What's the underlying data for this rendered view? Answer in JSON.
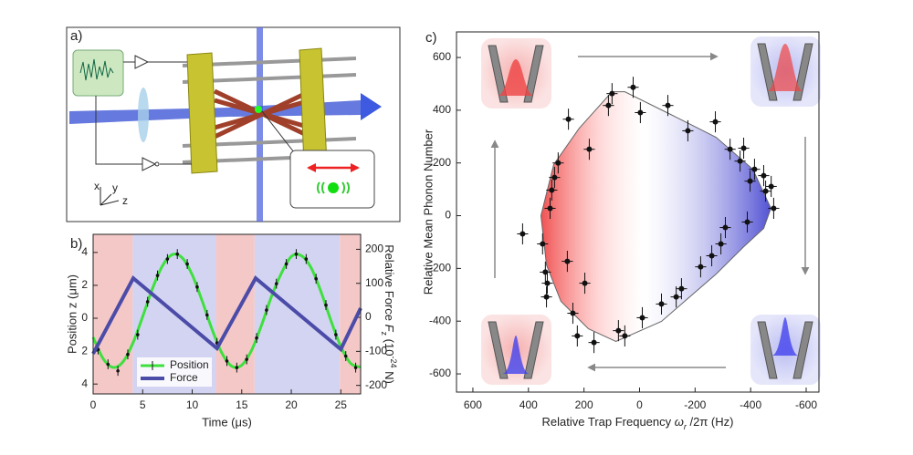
{
  "panel_labels": [
    "a)",
    "b)",
    "c)"
  ],
  "diagram": {
    "axes": [
      "x",
      "y",
      "z"
    ]
  },
  "chart_data": [
    {
      "type": "line",
      "xlabel": "Time (μs)",
      "ylabel": "Position z (μm)",
      "y2label": [
        "Relative Force ",
        "F",
        "z",
        " (10",
        "-24",
        " N)"
      ],
      "xlim": [
        0,
        27
      ],
      "xticks": [
        0,
        5,
        10,
        15,
        20,
        25
      ],
      "ylim": [
        -4.6,
        5.1
      ],
      "yticks": [
        {
          "value": -4,
          "label": "4"
        },
        {
          "value": -2,
          "label": "2"
        },
        0,
        2,
        4
      ],
      "y2lim": [
        -225,
        244
      ],
      "y2ticks": [
        -200,
        -100,
        0,
        100,
        200
      ],
      "legend": "lower left",
      "shading": [
        {
          "color": "#f5c8c8",
          "start": 0,
          "end": 4
        },
        {
          "color": "#d3d4f2",
          "start": 4,
          "end": 12.4
        },
        {
          "color": "#f5c8c8",
          "start": 12.4,
          "end": 16.3
        },
        {
          "color": "#d3d4f2",
          "start": 16.3,
          "end": 24.9
        },
        {
          "color": "#f5c8c8",
          "start": 24.9,
          "end": 27
        }
      ],
      "series": [
        {
          "name": "Position",
          "color": "#3ee03e",
          "marker_color": "#111111",
          "x": [
            0.5,
            1.5,
            2.5,
            3.5,
            4.5,
            5.5,
            6.5,
            7.5,
            8.5,
            9.5,
            10.5,
            11.5,
            12.5,
            13.5,
            14.5,
            15.5,
            16.5,
            17.5,
            18.5,
            19.5,
            20.5,
            21.5,
            22.5,
            23.5,
            24.5,
            25.5,
            26.5
          ],
          "values": [
            -1.9,
            -2.8,
            -3.2,
            -2.2,
            -1.0,
            1.0,
            2.6,
            3.6,
            3.9,
            3.3,
            1.9,
            0.2,
            -1.5,
            -2.6,
            -3.0,
            -2.5,
            -1.2,
            0.5,
            2.1,
            3.3,
            3.9,
            3.6,
            2.4,
            0.8,
            -1.0,
            -2.3,
            -3.0
          ],
          "errors": 0.3,
          "fit_x": [
            0,
            1,
            2,
            3,
            4,
            5,
            6,
            7,
            8,
            9,
            10,
            11,
            12,
            13,
            14,
            15,
            16,
            17,
            18,
            19,
            20,
            21,
            22,
            23,
            24,
            25,
            26,
            27
          ],
          "fit_values": [
            -1.16,
            -2.45,
            -2.99,
            -2.66,
            -1.53,
            0.1,
            1.82,
            3.19,
            3.87,
            3.67,
            2.64,
            1.06,
            -0.67,
            -2.12,
            -2.92,
            -2.85,
            -1.94,
            -0.42,
            1.32,
            2.73,
            3.75,
            3.81,
            3.07,
            1.61,
            -0.14,
            -1.72,
            -2.75,
            -2.97
          ]
        },
        {
          "name": "Force",
          "color": "#4b4ba8",
          "axis": "y2",
          "x": [
            0,
            4.05,
            12.5,
            16.4,
            25,
            27
          ],
          "values": [
            -107,
            115,
            -91,
            115,
            -94,
            27
          ]
        }
      ]
    },
    {
      "type": "scatter",
      "xlabel": [
        "Relative Trap Frequency ",
        "ω",
        "r",
        " /2π (Hz)"
      ],
      "ylabel": "Relative Mean Phonon Number",
      "xlim": [
        659,
        -646
      ],
      "xticks": [
        600,
        400,
        200,
        0,
        -200,
        -400,
        -600
      ],
      "ylim": [
        -669,
        697
      ],
      "yticks": [
        -600,
        -400,
        -200,
        0,
        200,
        400,
        600
      ],
      "color": "#111111",
      "xerr": 20,
      "yerr": 40,
      "x": [
        421,
        349,
        339,
        335,
        332,
        322,
        316,
        306,
        293,
        256,
        260,
        240,
        224,
        197,
        181,
        164,
        112,
        99,
        76,
        53,
        23,
        -3,
        -10,
        -79,
        -102,
        -132,
        -151,
        -174,
        -220,
        -260,
        -273,
        -293,
        -309,
        -326,
        -362,
        -375,
        -388,
        -398,
        -414,
        -447,
        -454,
        -474,
        -483
      ],
      "values": [
        -69,
        -107,
        -214,
        -308,
        -256,
        28,
        97,
        145,
        200,
        366,
        -173,
        -370,
        -456,
        -256,
        252,
        -481,
        418,
        463,
        -436,
        -456,
        487,
        391,
        -387,
        -335,
        418,
        -308,
        -277,
        322,
        -194,
        -152,
        356,
        -107,
        -45,
        252,
        207,
        256,
        -24,
        131,
        176,
        152,
        93,
        111,
        28
      ],
      "region": {
        "x": [
          99,
          217,
          309,
          355,
          335,
          283,
          184,
          85,
          -79,
          -276,
          -375,
          -447,
          -473,
          -408,
          -276,
          -112,
          53
        ],
        "y": [
          470,
          332,
          194,
          0,
          -187,
          -325,
          -429,
          -477,
          -401,
          -221,
          -118,
          -48,
          28,
          176,
          297,
          384,
          470
        ]
      }
    }
  ]
}
